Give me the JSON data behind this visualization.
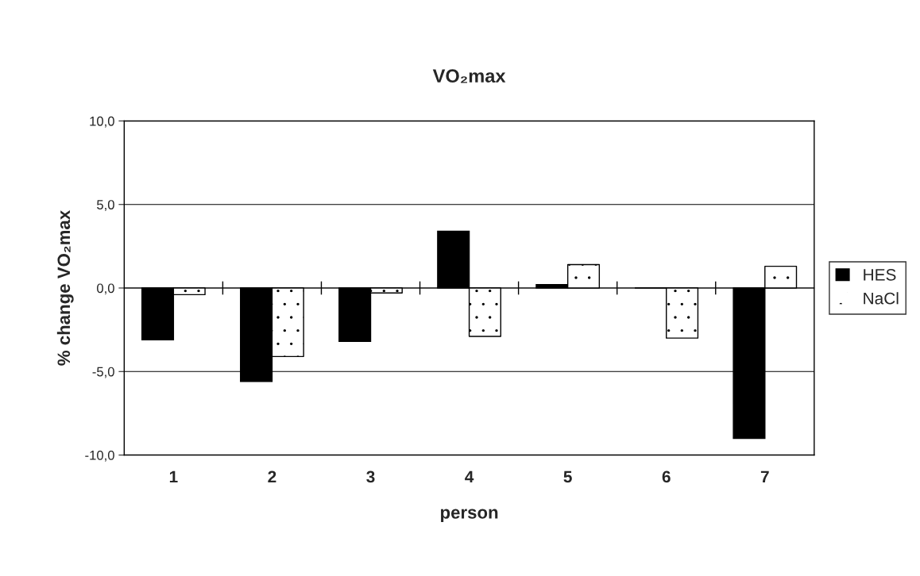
{
  "chart_data": {
    "type": "bar",
    "title": "VO₂max",
    "xlabel": "person",
    "ylabel": "% change VO₂max",
    "categories": [
      "1",
      "2",
      "3",
      "4",
      "5",
      "6",
      "7"
    ],
    "series": [
      {
        "name": "HES",
        "color": "#000000",
        "values": [
          -3.1,
          -5.6,
          -3.2,
          3.4,
          0.2,
          0.0,
          -9.0
        ]
      },
      {
        "name": "NaCl",
        "color": "#ffffff",
        "values": [
          -0.4,
          -4.1,
          -0.3,
          -2.9,
          1.4,
          -3.0,
          1.3
        ]
      }
    ],
    "ylim": [
      -10,
      10
    ],
    "yticks": [
      {
        "value": -10,
        "label": "-10,0"
      },
      {
        "value": -5,
        "label": "-5,0"
      },
      {
        "value": 0,
        "label": "0,0"
      },
      {
        "value": 5,
        "label": "5,0"
      },
      {
        "value": 10,
        "label": "10,0"
      }
    ],
    "grid": "y",
    "legend": "right"
  }
}
